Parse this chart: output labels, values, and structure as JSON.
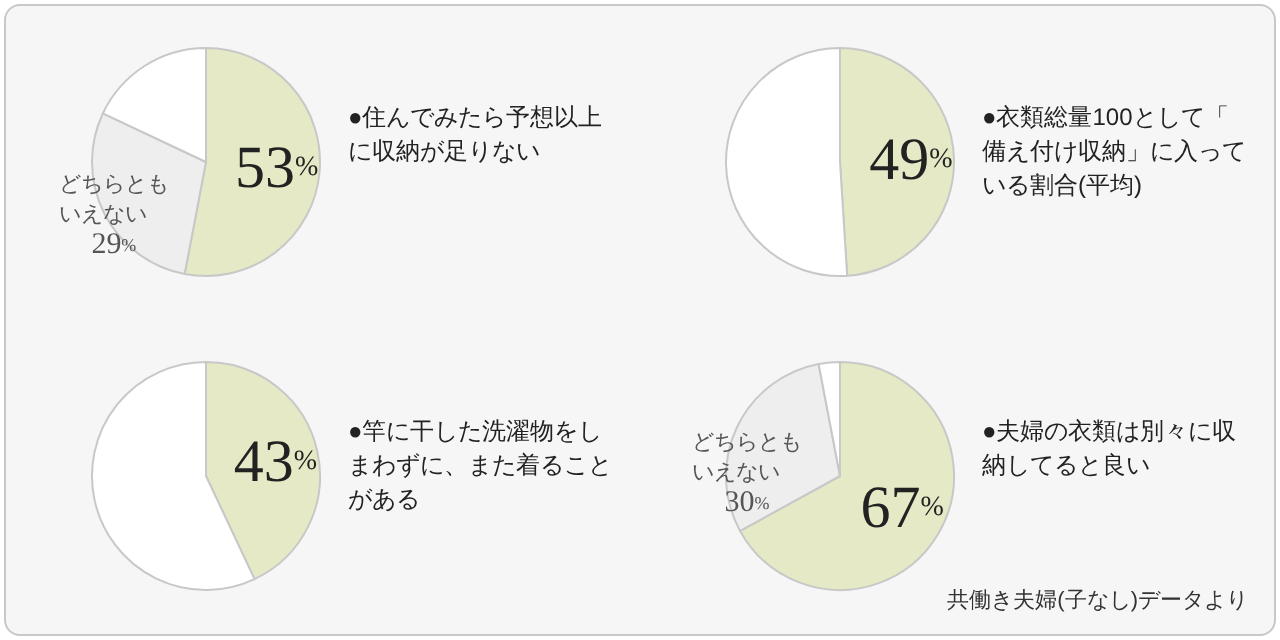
{
  "chart_data": [
    {
      "type": "pie",
      "title": "●住んでみたら予想以上に収納が足りない",
      "categories": [
        null,
        "どちらともいえない",
        null
      ],
      "values": [
        53,
        29,
        18
      ],
      "colors": [
        "#e6e9c5",
        "#eeeeee",
        "#ffffff"
      ],
      "value_labels": [
        "53%",
        "29%",
        null
      ]
    },
    {
      "type": "pie",
      "title": "●衣類総量100として「備え付け収納」に入っている割合(平均)",
      "categories": [
        null,
        null
      ],
      "values": [
        49,
        51
      ],
      "colors": [
        "#e6e9c5",
        "#ffffff"
      ],
      "value_labels": [
        "49%",
        null
      ]
    },
    {
      "type": "pie",
      "title": "●竿に干した洗濯物をしまわずに、また着ることがある",
      "categories": [
        null,
        null
      ],
      "values": [
        43,
        57
      ],
      "colors": [
        "#e6e9c5",
        "#ffffff"
      ],
      "value_labels": [
        "43%",
        null
      ]
    },
    {
      "type": "pie",
      "title": "●夫婦の衣類は別々に収納してると良い",
      "categories": [
        null,
        "どちらともいえない",
        null
      ],
      "values": [
        67,
        30,
        3
      ],
      "colors": [
        "#e6e9c5",
        "#eeeeee",
        "#ffffff"
      ],
      "value_labels": [
        "67%",
        "30%",
        null
      ],
      "annotations": [
        "共働き夫婦(子なし)データより"
      ]
    }
  ]
}
